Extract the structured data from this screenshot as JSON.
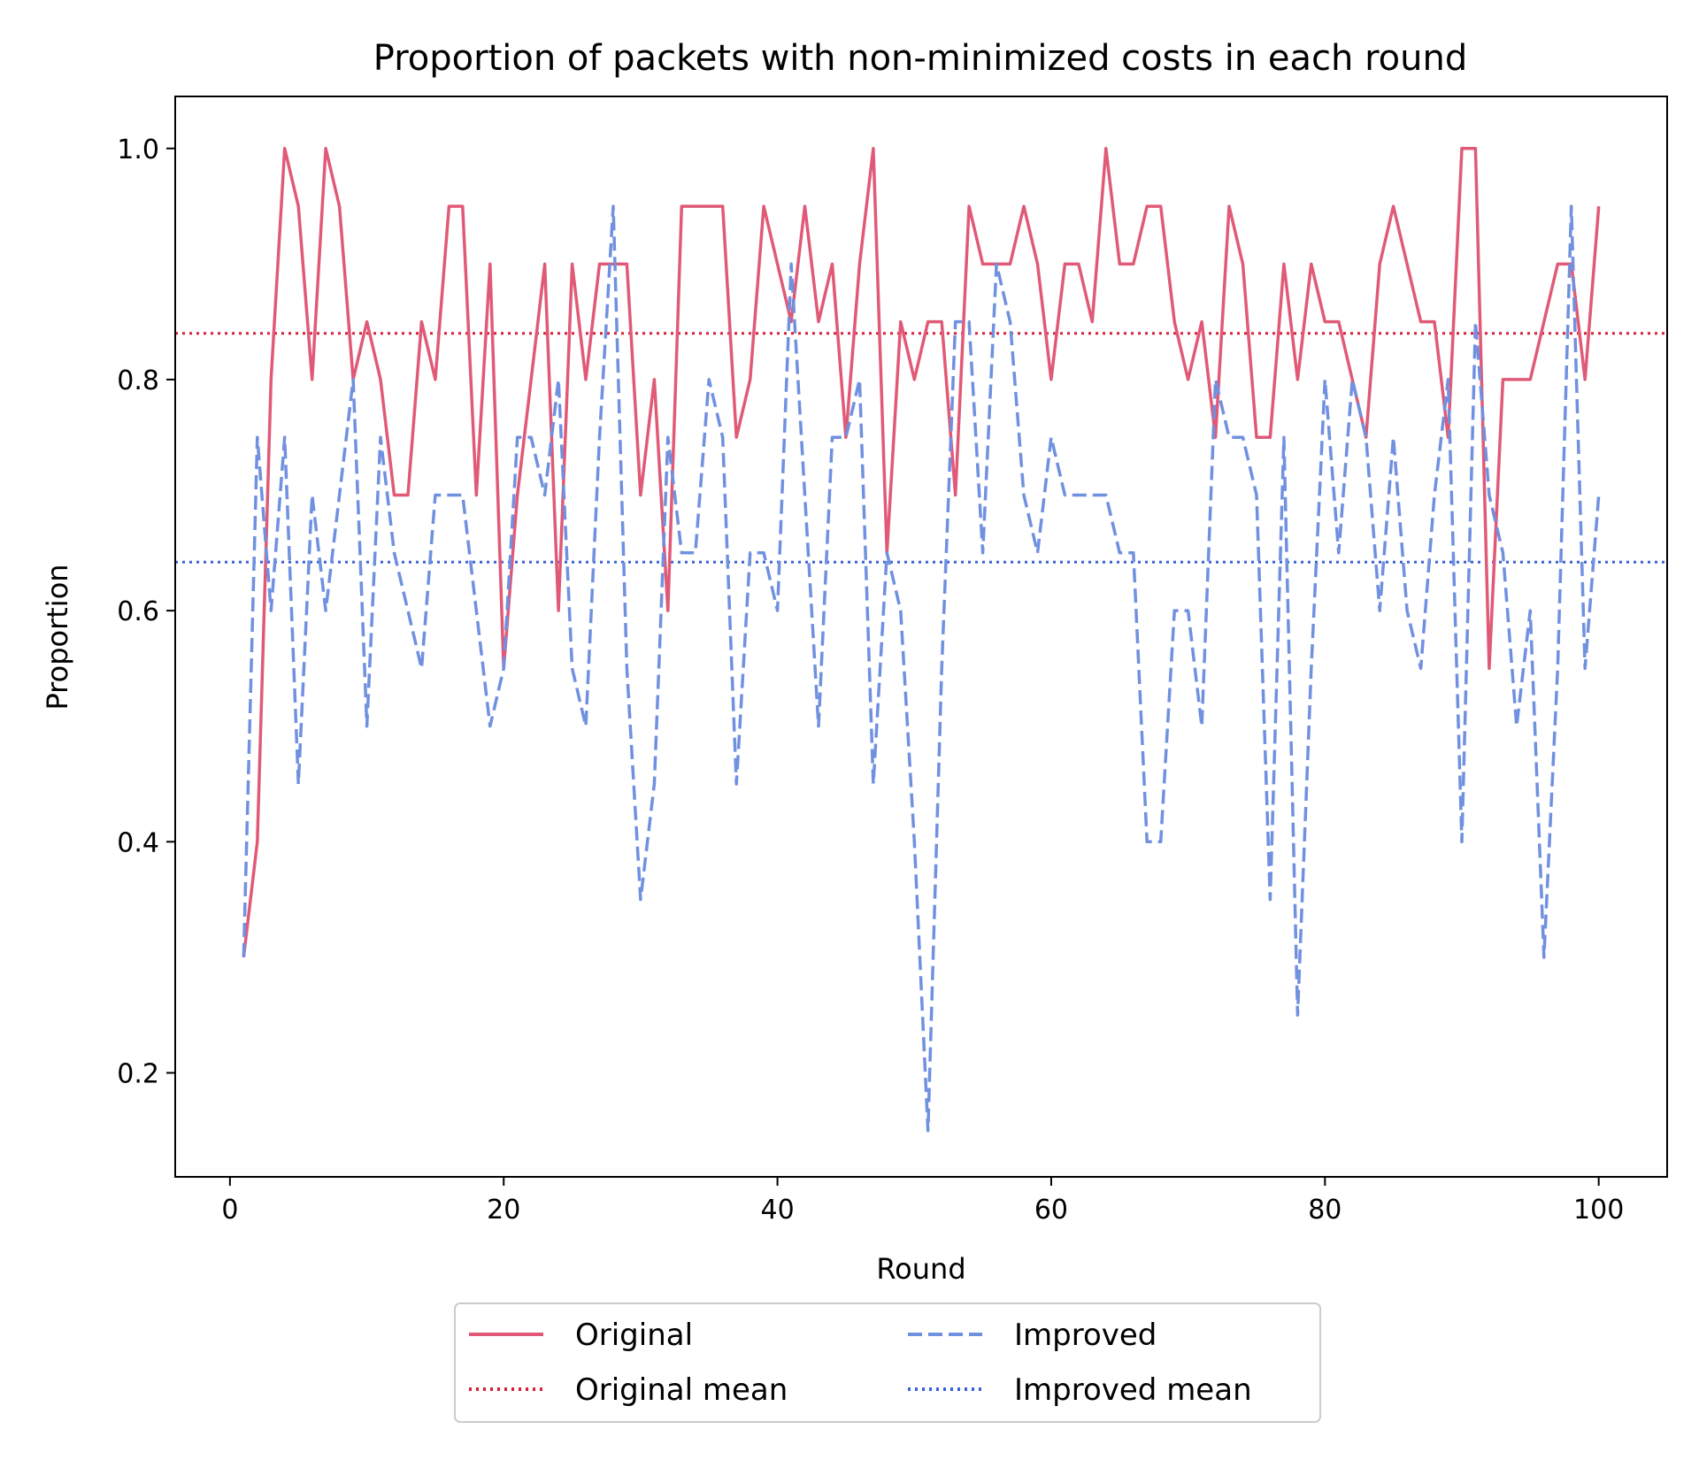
{
  "chart_data": {
    "type": "line",
    "title": "Proportion of packets with non-minimized costs in each round",
    "xlabel": "Round",
    "ylabel": "Proportion",
    "xlim": [
      -4,
      105
    ],
    "ylim": [
      0.11,
      1.045
    ],
    "xticks": [
      0,
      20,
      40,
      60,
      80,
      100
    ],
    "yticks": [
      0.2,
      0.4,
      0.6,
      0.8,
      1.0
    ],
    "xtick_labels": [
      "0",
      "20",
      "40",
      "60",
      "80",
      "100"
    ],
    "ytick_labels": [
      "0.2",
      "0.4",
      "0.6",
      "0.8",
      "1.0"
    ],
    "grid": false,
    "legend": {
      "placement": "below-center",
      "columns": 2
    },
    "series": [
      {
        "name": "Original",
        "color": "#e05a78",
        "style": "solid",
        "values": [
          0.3,
          0.4,
          0.8,
          1.0,
          0.95,
          0.8,
          1.0,
          0.95,
          0.8,
          0.85,
          0.8,
          0.7,
          0.7,
          0.85,
          0.8,
          0.95,
          0.95,
          0.7,
          0.9,
          0.55,
          0.7,
          0.8,
          0.9,
          0.6,
          0.9,
          0.8,
          0.9,
          0.9,
          0.9,
          0.7,
          0.8,
          0.6,
          0.95,
          0.95,
          0.95,
          0.95,
          0.75,
          0.8,
          0.95,
          0.9,
          0.85,
          0.95,
          0.85,
          0.9,
          0.75,
          0.9,
          1.0,
          0.65,
          0.85,
          0.8,
          0.85,
          0.85,
          0.7,
          0.95,
          0.9,
          0.9,
          0.9,
          0.95,
          0.9,
          0.8,
          0.9,
          0.9,
          0.85,
          1.0,
          0.9,
          0.9,
          0.95,
          0.95,
          0.85,
          0.8,
          0.85,
          0.75,
          0.95,
          0.9,
          0.75,
          0.75,
          0.9,
          0.8,
          0.9,
          0.85,
          0.85,
          0.8,
          0.75,
          0.9,
          0.95,
          0.9,
          0.85,
          0.85,
          0.75,
          1.0,
          1.0,
          0.55,
          0.8,
          0.8,
          0.8,
          0.85,
          0.9,
          0.9,
          0.8,
          0.95
        ]
      },
      {
        "name": "Improved",
        "color": "#7090e0",
        "style": "dashed",
        "values": [
          0.3,
          0.75,
          0.6,
          0.75,
          0.45,
          0.7,
          0.6,
          0.7,
          0.8,
          0.5,
          0.75,
          0.65,
          0.6,
          0.55,
          0.7,
          0.7,
          0.7,
          0.6,
          0.5,
          0.55,
          0.75,
          0.75,
          0.7,
          0.8,
          0.55,
          0.5,
          0.75,
          0.95,
          0.55,
          0.35,
          0.45,
          0.75,
          0.65,
          0.65,
          0.8,
          0.75,
          0.45,
          0.65,
          0.65,
          0.6,
          0.9,
          0.7,
          0.5,
          0.75,
          0.75,
          0.8,
          0.45,
          0.65,
          0.6,
          0.4,
          0.15,
          0.55,
          0.85,
          0.85,
          0.65,
          0.9,
          0.85,
          0.7,
          0.65,
          0.75,
          0.7,
          0.7,
          0.7,
          0.7,
          0.65,
          0.65,
          0.4,
          0.4,
          0.6,
          0.6,
          0.5,
          0.8,
          0.75,
          0.75,
          0.7,
          0.35,
          0.75,
          0.25,
          0.55,
          0.8,
          0.65,
          0.8,
          0.75,
          0.6,
          0.75,
          0.6,
          0.55,
          0.7,
          0.8,
          0.4,
          0.85,
          0.7,
          0.65,
          0.5,
          0.6,
          0.3,
          0.55,
          0.95,
          0.55,
          0.7
        ]
      },
      {
        "name": "Original mean",
        "color": "#d6203c",
        "style": "dotted",
        "mean": 0.84
      },
      {
        "name": "Improved mean",
        "color": "#3a62d6",
        "style": "dotted",
        "mean": 0.642
      }
    ]
  }
}
